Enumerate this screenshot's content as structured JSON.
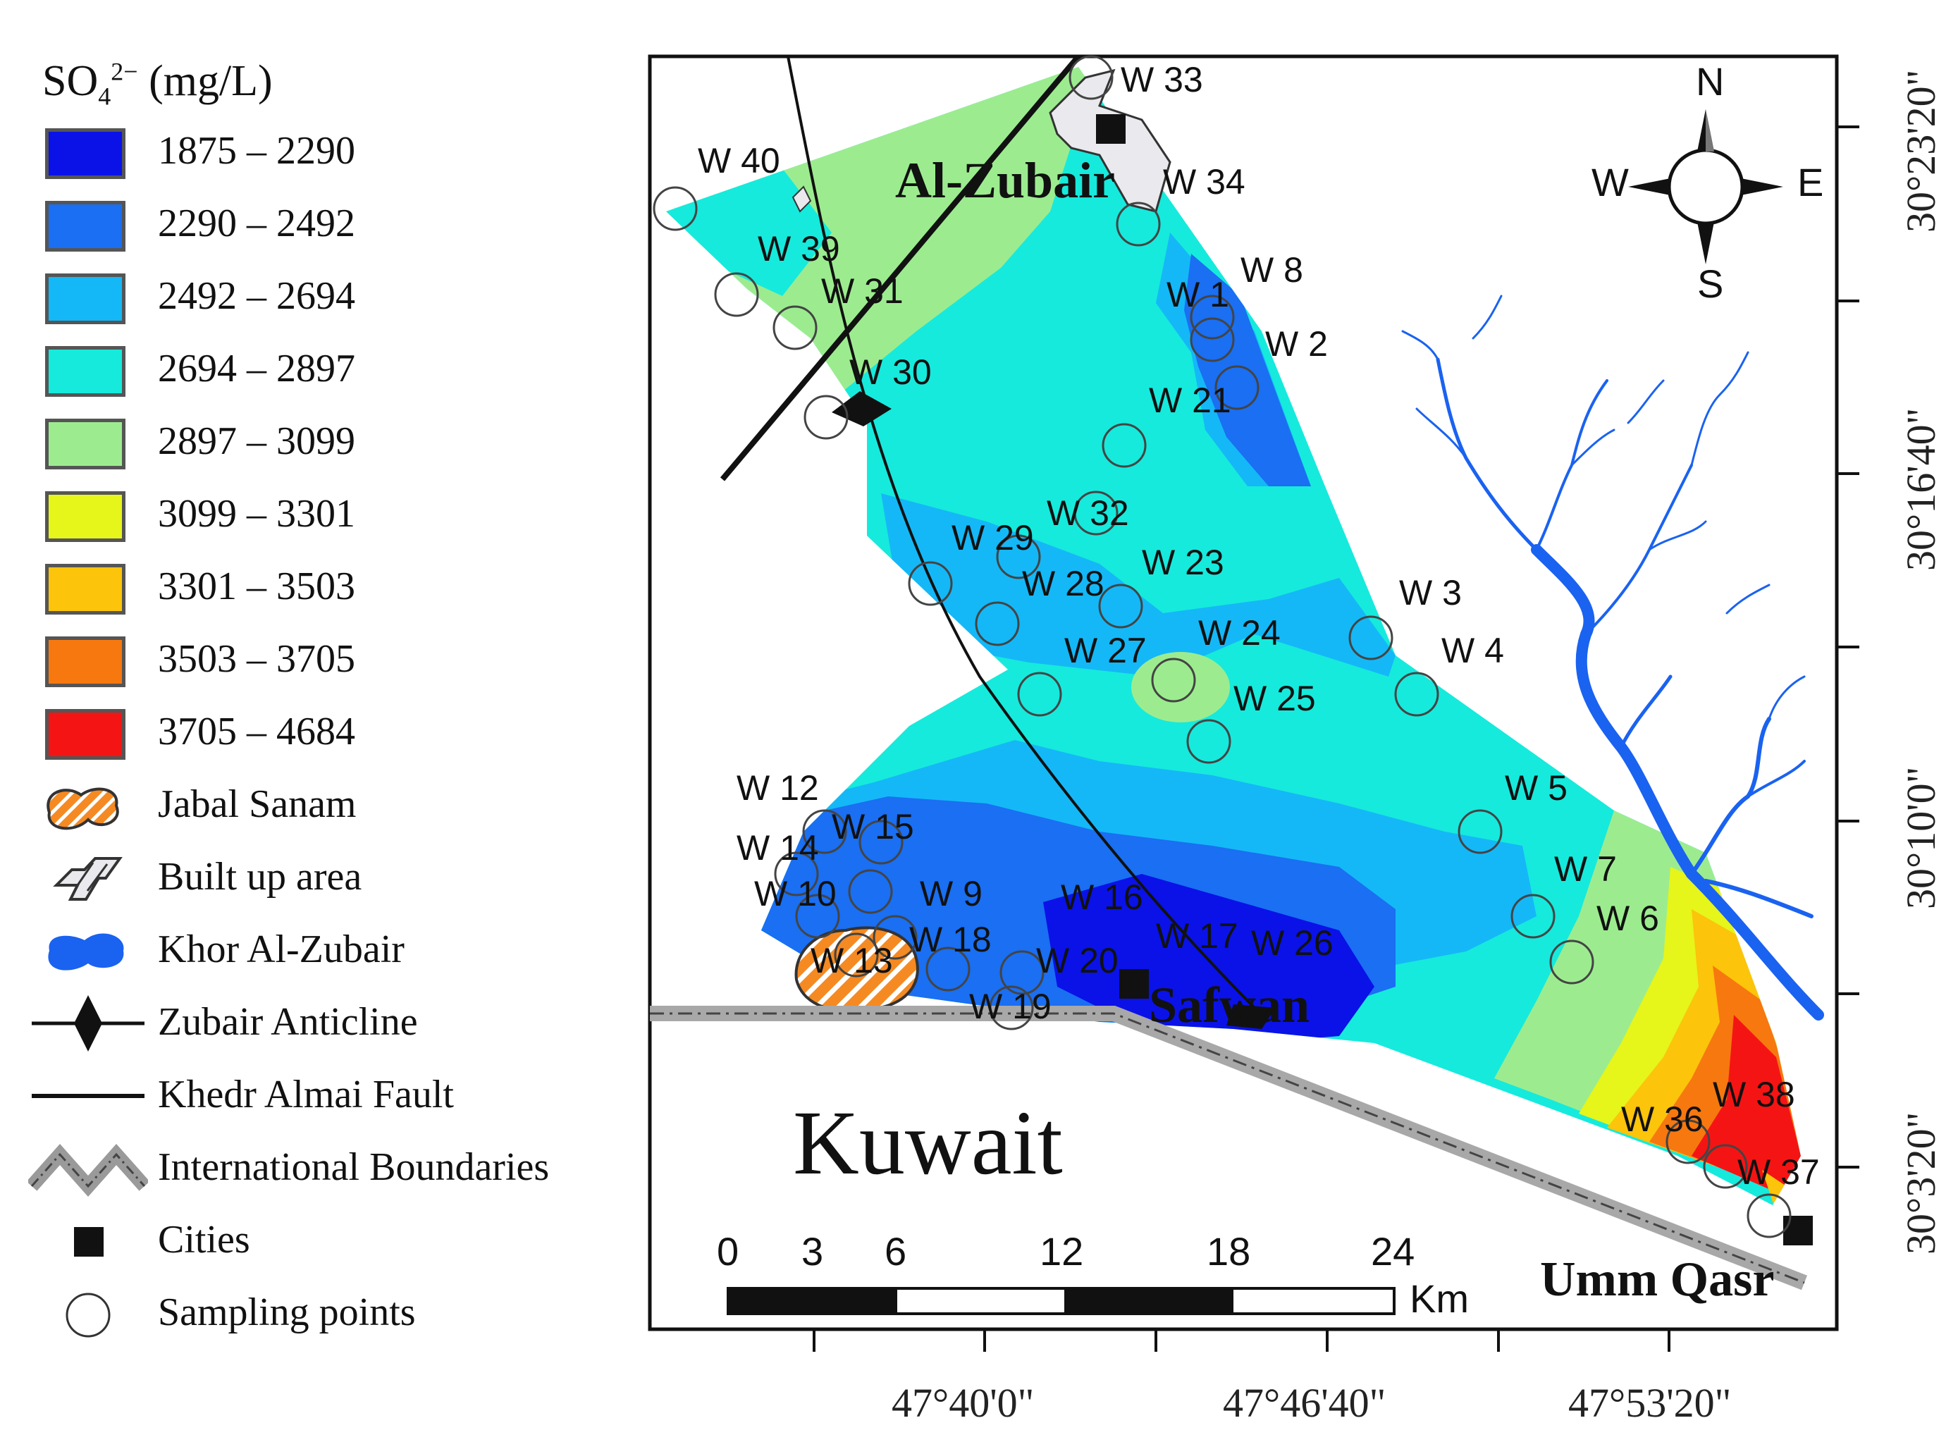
{
  "legend": {
    "title_main": "SO",
    "title_sub": "4",
    "title_sup": "2−",
    "title_unit": "(mg/L)",
    "classes": [
      {
        "label": "1875 – 2290",
        "color": "#0a12e8"
      },
      {
        "label": "2290 – 2492",
        "color": "#1a6ff2"
      },
      {
        "label": "2492 – 2694",
        "color": "#14b8f7"
      },
      {
        "label": "2694 – 2897",
        "color": "#16eadc"
      },
      {
        "label": "2897 – 3099",
        "color": "#9cec8f"
      },
      {
        "label": "3099 – 3301",
        "color": "#e6f51a"
      },
      {
        "label": "3301 – 3503",
        "color": "#fcc40a"
      },
      {
        "label": "3503 – 3705",
        "color": "#f7780f"
      },
      {
        "label": "3705 – 4684",
        "color": "#f51414"
      }
    ],
    "symbols": [
      {
        "label": "Jabal Sanam",
        "icon": "jabal-sanam-hatch-icon"
      },
      {
        "label": "Built up area",
        "icon": "built-up-area-icon"
      },
      {
        "label": "Khor Al-Zubair",
        "icon": "water-body-icon"
      },
      {
        "label": "Zubair Anticline",
        "icon": "anticline-diamond-icon"
      },
      {
        "label": "Khedr Almai Fault",
        "icon": "fault-line-icon"
      },
      {
        "label": "International Boundaries",
        "icon": "boundary-line-icon"
      },
      {
        "label": "Cities",
        "icon": "city-square-icon"
      },
      {
        "label": "Sampling points",
        "icon": "sampling-circle-icon"
      }
    ]
  },
  "map": {
    "country_label": "Kuwait",
    "cities": {
      "zubair": "Al-Zubair",
      "safwan": "Safwan",
      "umm_qasr": "Umm Qasr"
    },
    "compass": {
      "n": "N",
      "s": "S",
      "e": "E",
      "w": "W"
    },
    "wells": [
      "W 33",
      "W 34",
      "W 40",
      "W 39",
      "W 31",
      "W 30",
      "W 1",
      "W 8",
      "W 2",
      "W 21",
      "W 32",
      "W 29",
      "W 28",
      "W 23",
      "W 3",
      "W 4",
      "W 24",
      "W 27",
      "W 25",
      "W 12",
      "W 15",
      "W 14",
      "W 10",
      "W 9",
      "W 16",
      "W 18",
      "W 17",
      "W 26",
      "W 13",
      "W 20",
      "W 19",
      "W 5",
      "W 7",
      "W 6",
      "W 38",
      "W 36",
      "W 37"
    ],
    "scale_bar": {
      "ticks": [
        "0",
        "3",
        "6",
        "12",
        "18",
        "24"
      ],
      "unit": "Km"
    },
    "longitude_labels": [
      "47°40'0\"",
      "47°46'40\"",
      "47°53'20\""
    ],
    "latitude_labels": [
      "30°23'20\"",
      "30°16'40\"",
      "30°10'0\"",
      "30°3'20\""
    ]
  }
}
